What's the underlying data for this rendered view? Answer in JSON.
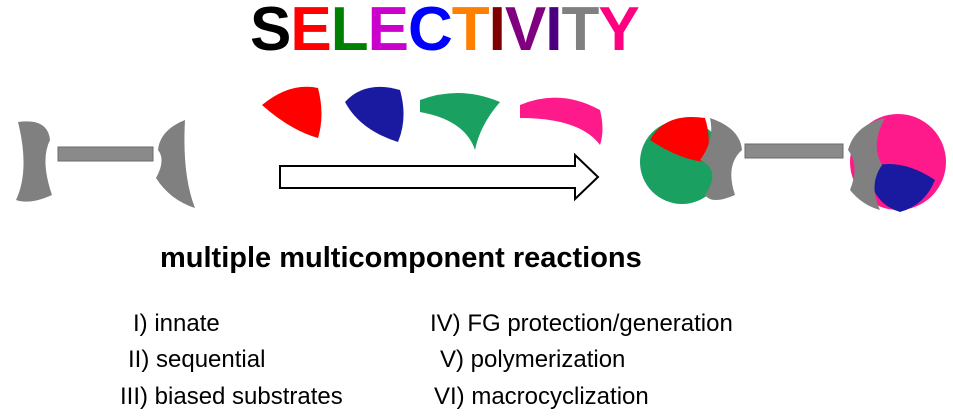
{
  "title": {
    "letters": [
      {
        "char": "S",
        "color": "#000000"
      },
      {
        "char": "E",
        "color": "#ff0000"
      },
      {
        "char": "L",
        "color": "#008000"
      },
      {
        "char": "E",
        "color": "#cc00cc"
      },
      {
        "char": "C",
        "color": "#0000ff"
      },
      {
        "char": "T",
        "color": "#ff8000"
      },
      {
        "char": "I",
        "color": "#800000"
      },
      {
        "char": "V",
        "color": "#800080"
      },
      {
        "char": "I",
        "color": "#4b0082"
      },
      {
        "char": "T",
        "color": "#808080"
      },
      {
        "char": "Y",
        "color": "#ff0080"
      }
    ]
  },
  "subtitle": "multiple multicomponent reactions",
  "reaction_types_left": [
    "I) innate",
    "II) sequential",
    "III) biased substrates"
  ],
  "reaction_types_right": [
    "IV) FG protection/generation",
    "V) polymerization",
    "VI) macrocyclization"
  ],
  "colors": {
    "component_red": "#ff0000",
    "component_blue": "#1a1aa0",
    "component_green": "#1aa060",
    "component_pink": "#ff1a8c",
    "scaffold_gray": "#808080"
  }
}
